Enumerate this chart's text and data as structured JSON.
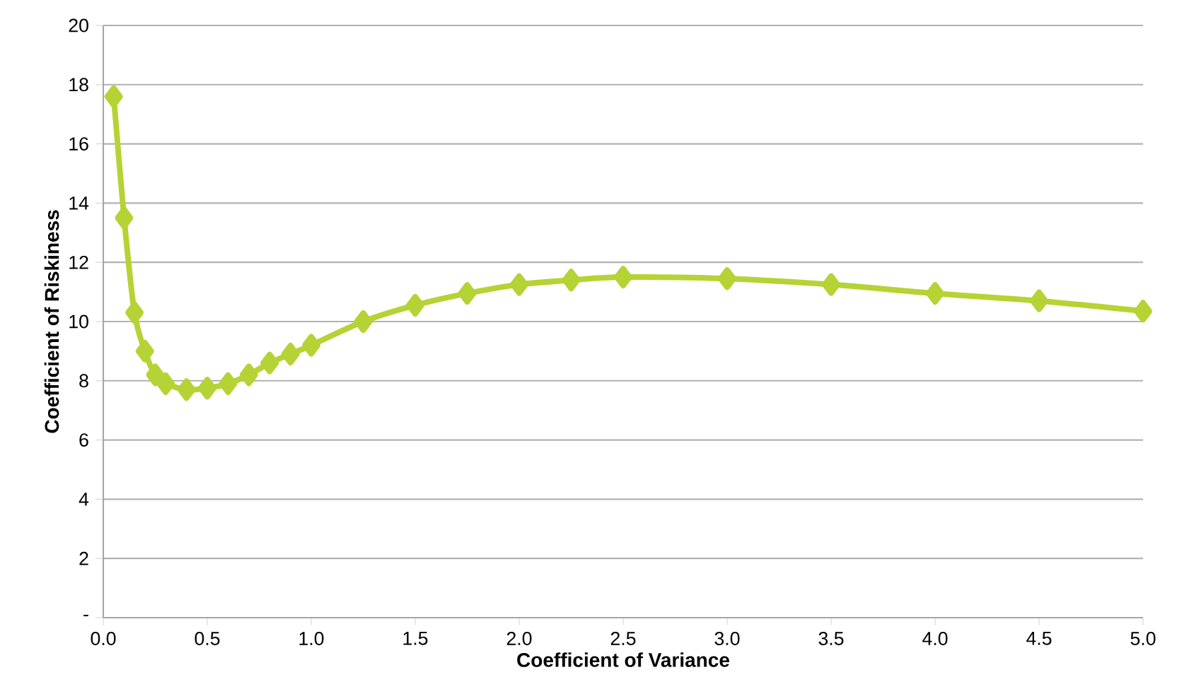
{
  "chart_data": {
    "type": "line",
    "xlabel": "Coefficient of Variance",
    "ylabel": "Coefficient of Riskiness",
    "x": [
      0.05,
      0.1,
      0.15,
      0.2,
      0.25,
      0.3,
      0.4,
      0.5,
      0.6,
      0.7,
      0.8,
      0.9,
      1.0,
      1.25,
      1.5,
      1.75,
      2.0,
      2.25,
      2.5,
      3.0,
      3.5,
      4.0,
      4.5,
      5.0
    ],
    "series": [
      {
        "color": "#b5d334",
        "values": [
          17.6,
          13.5,
          10.3,
          9.0,
          8.2,
          7.9,
          7.7,
          7.75,
          7.9,
          8.2,
          8.6,
          8.9,
          9.2,
          10.0,
          10.55,
          10.95,
          11.25,
          11.4,
          11.5,
          11.45,
          11.25,
          10.95,
          10.7,
          10.35
        ]
      }
    ],
    "xlim": [
      0,
      5
    ],
    "ylim": [
      0,
      20
    ],
    "xticks": [
      {
        "value": 0,
        "label": "0.0"
      },
      0.5,
      {
        "value": 1,
        "label": "1.0"
      },
      1.5,
      {
        "value": 2,
        "label": "2.0"
      },
      2.5,
      {
        "value": 3,
        "label": "3.0"
      },
      3.5,
      {
        "value": 4,
        "label": "4.0"
      },
      4.5,
      {
        "value": 5,
        "label": "5.0"
      }
    ],
    "yticks": [
      {
        "value": 0,
        "label": "-"
      },
      2,
      4,
      6,
      8,
      10,
      12,
      14,
      16,
      18,
      20
    ],
    "grid": "y",
    "marker": "diamond",
    "line_style": "solid"
  }
}
